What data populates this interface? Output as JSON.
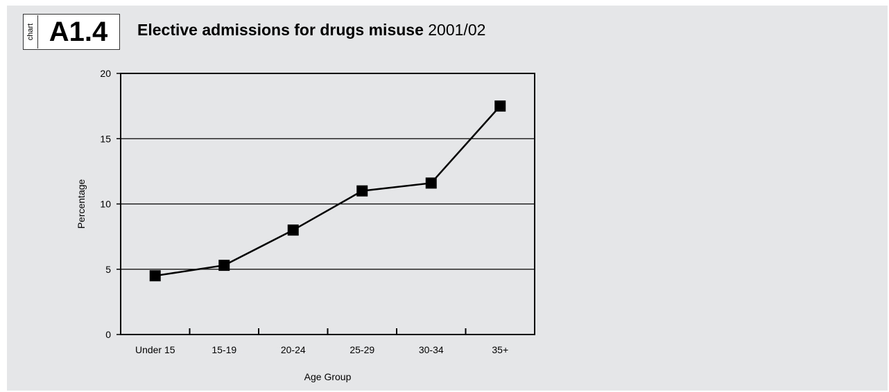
{
  "badge": {
    "word": "chart",
    "code": "A1.4"
  },
  "title": {
    "bold": "Elective admissions for drugs misuse",
    "normal": "2001/02"
  },
  "colors": {
    "background": "#e5e6e8",
    "line": "#000000",
    "marker": "#000000"
  },
  "chart_data": {
    "type": "line",
    "categories": [
      "Under 15",
      "15-19",
      "20-24",
      "25-29",
      "30-34",
      "35+"
    ],
    "values": [
      4.5,
      5.3,
      8.0,
      11.0,
      11.6,
      17.5
    ],
    "xlabel": "Age Group",
    "ylabel": "Percentage",
    "ylim": [
      0,
      20
    ],
    "yticks": [
      0,
      5,
      10,
      15,
      20
    ],
    "grid": true,
    "marker": "square"
  }
}
